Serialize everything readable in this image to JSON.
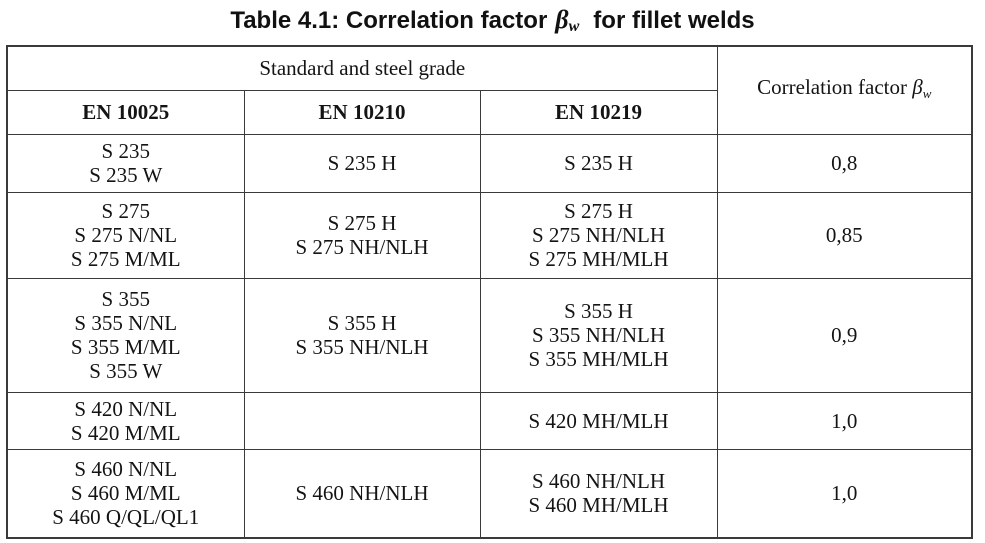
{
  "title": {
    "prefix": "Table 4.1: Correlation factor",
    "symbol": "β",
    "subscript": "w",
    "suffix": "for fillet welds"
  },
  "header": {
    "group_label": "Standard and steel grade",
    "correlation_label": "Correlation factor",
    "correlation_symbol": "β",
    "correlation_subscript": "w",
    "standards": [
      "EN 10025",
      "EN 10210",
      "EN 10219"
    ]
  },
  "rows": [
    {
      "en10025": [
        "S 235",
        "S 235 W"
      ],
      "en10210": [
        "S 235 H"
      ],
      "en10219": [
        "S 235 H"
      ],
      "factor": "0,8"
    },
    {
      "en10025": [
        "S 275",
        "S 275 N/NL",
        "S 275 M/ML"
      ],
      "en10210": [
        "S 275 H",
        "S 275 NH/NLH"
      ],
      "en10219": [
        "S 275 H",
        "S 275 NH/NLH",
        "S 275 MH/MLH"
      ],
      "factor": "0,85"
    },
    {
      "en10025": [
        "S 355",
        "S 355 N/NL",
        "S 355 M/ML",
        "S 355 W"
      ],
      "en10210": [
        "S 355 H",
        "S 355 NH/NLH"
      ],
      "en10219": [
        "S 355 H",
        "S 355 NH/NLH",
        "S 355 MH/MLH"
      ],
      "factor": "0,9"
    },
    {
      "en10025": [
        "S 420 N/NL",
        "S 420 M/ML"
      ],
      "en10210": [],
      "en10219": [
        "S 420 MH/MLH"
      ],
      "factor": "1,0"
    },
    {
      "en10025": [
        "S 460 N/NL",
        "S 460 M/ML",
        "S 460 Q/QL/QL1"
      ],
      "en10210": [
        "S 460 NH/NLH"
      ],
      "en10219": [
        "S 460 NH/NLH",
        "S 460 MH/MLH"
      ],
      "factor": "1,0"
    }
  ]
}
